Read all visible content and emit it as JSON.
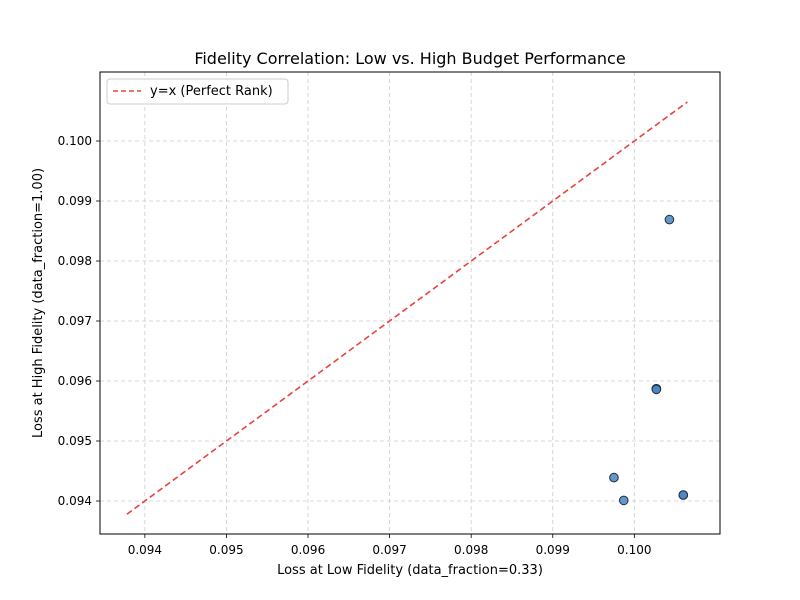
{
  "chart_data": {
    "type": "scatter",
    "title": "Fidelity Correlation: Low vs. High Budget Performance",
    "xlabel": "Loss at Low Fidelity (data_fraction=0.33)",
    "ylabel": "Loss at High Fidelity (data_fraction=1.00)",
    "xlim": [
      0.09345,
      0.10105
    ],
    "ylim": [
      0.09345,
      0.10115
    ],
    "x_ticks": [
      "0.094",
      "0.095",
      "0.096",
      "0.097",
      "0.098",
      "0.099",
      "0.100"
    ],
    "y_ticks": [
      "0.094",
      "0.095",
      "0.096",
      "0.097",
      "0.098",
      "0.099",
      "0.100"
    ],
    "grid": true,
    "legend_position": "top-left",
    "reference_line": {
      "name": "y=x (Perfect Rank)",
      "x": [
        0.09378,
        0.10065
      ],
      "y": [
        0.09378,
        0.10065
      ],
      "color": "#e8433f",
      "style": "dashed"
    },
    "points": {
      "color": "#4b86bd",
      "edge_color": "#1f2f3f",
      "x": [
        0.10043,
        0.10027,
        0.10027,
        0.10027,
        0.09975,
        0.09987,
        0.1006,
        0.1006
      ],
      "y": [
        0.09869,
        0.09587,
        0.09587,
        0.09586,
        0.09439,
        0.09401,
        0.0941,
        0.0941
      ]
    }
  }
}
